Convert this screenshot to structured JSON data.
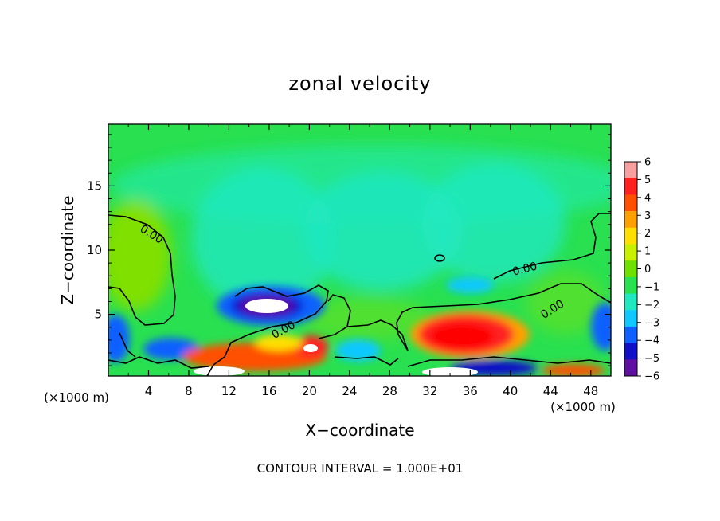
{
  "chart_data": {
    "type": "heatmap",
    "title": "zonal velocity",
    "xlabel": "X−coordinate",
    "ylabel": "Z−coordinate",
    "x_unit_label": "(×1000 m)",
    "x_unit_label_right": "(×1000 m)",
    "xlim": [
      0,
      50
    ],
    "ylim": [
      0.2,
      19.8
    ],
    "x_ticks": [
      4,
      8,
      12,
      16,
      20,
      24,
      28,
      32,
      36,
      40,
      44,
      48
    ],
    "x_tick_labels": [
      "4",
      "8",
      "12",
      "16",
      "20",
      "24",
      "28",
      "32",
      "36",
      "40",
      "44",
      "48"
    ],
    "y_ticks": [
      5,
      10,
      15
    ],
    "y_tick_labels": [
      "5",
      "10",
      "15"
    ],
    "colorbar": {
      "levels": [
        6,
        5,
        4,
        3,
        2,
        1,
        0,
        -1,
        -2,
        -3,
        -4,
        -5,
        -6
      ],
      "labels": [
        "6",
        "5",
        "4",
        "3",
        "2",
        "1",
        "0",
        "−1",
        "−2",
        "−3",
        "−4",
        "−5",
        "−6"
      ],
      "colors": [
        "#f8a0a0",
        "#ff2020",
        "#ff5000",
        "#ffa000",
        "#ffe000",
        "#c8f000",
        "#70e000",
        "#28e050",
        "#20e8c0",
        "#10c8ff",
        "#1060ff",
        "#1010c8",
        "#6010a0"
      ]
    },
    "contour_labels": [
      "0.00",
      "0.00",
      "0.00",
      "0.00"
    ],
    "footer": "CONTOUR INTERVAL = 1.000E+01",
    "grid": false
  }
}
